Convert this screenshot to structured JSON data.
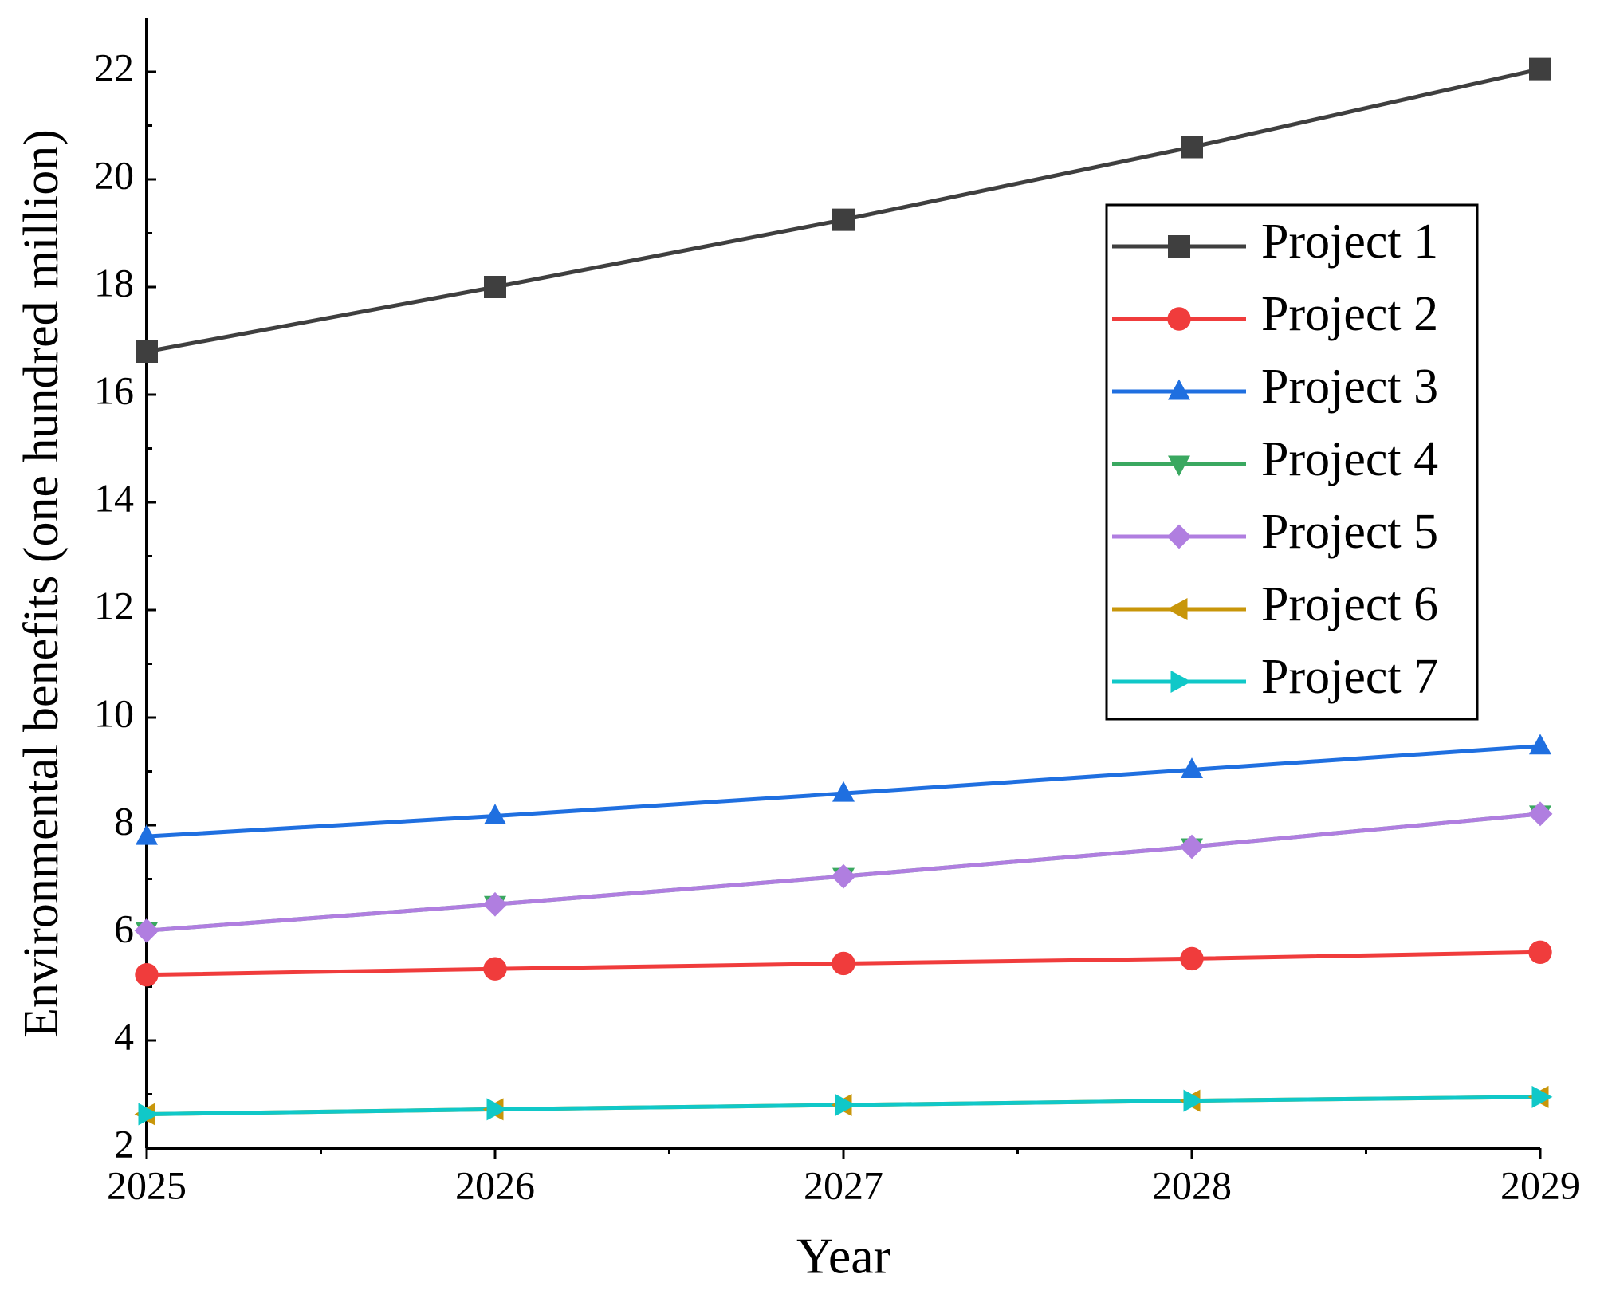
{
  "chart_data": {
    "type": "line",
    "x_label": "Year",
    "y_label": "Environmental benefits (one hundred million)",
    "x": [
      2025,
      2026,
      2027,
      2028,
      2029
    ],
    "xlim": [
      2025,
      2029
    ],
    "xticks": [
      2025,
      2026,
      2027,
      2028,
      2029
    ],
    "ylim": [
      2,
      23
    ],
    "yticks": [
      2,
      4,
      6,
      8,
      10,
      12,
      14,
      16,
      18,
      20,
      22
    ],
    "legend": "upper right",
    "grid": false,
    "series": [
      {
        "name": "Project 1",
        "color": "#3f3f3f",
        "marker": "square",
        "values": [
          16.8,
          18.0,
          19.25,
          20.6,
          22.05
        ]
      },
      {
        "name": "Project 2",
        "color": "#f03c3c",
        "marker": "circle",
        "values": [
          5.22,
          5.33,
          5.43,
          5.52,
          5.64
        ]
      },
      {
        "name": "Project 3",
        "color": "#1f6fe0",
        "marker": "triangle-up",
        "values": [
          7.79,
          8.17,
          8.59,
          9.03,
          9.47
        ]
      },
      {
        "name": "Project 4",
        "color": "#3aa860",
        "marker": "triangle-down",
        "values": [
          6.04,
          6.53,
          7.05,
          7.6,
          8.21
        ]
      },
      {
        "name": "Project 5",
        "color": "#b07ee0",
        "marker": "diamond",
        "values": [
          6.04,
          6.53,
          7.05,
          7.6,
          8.21
        ]
      },
      {
        "name": "Project 6",
        "color": "#c8960a",
        "marker": "triangle-left",
        "values": [
          2.63,
          2.72,
          2.8,
          2.88,
          2.95
        ]
      },
      {
        "name": "Project 7",
        "color": "#10c8c8",
        "marker": "triangle-right",
        "values": [
          2.63,
          2.72,
          2.8,
          2.88,
          2.95
        ]
      }
    ]
  }
}
